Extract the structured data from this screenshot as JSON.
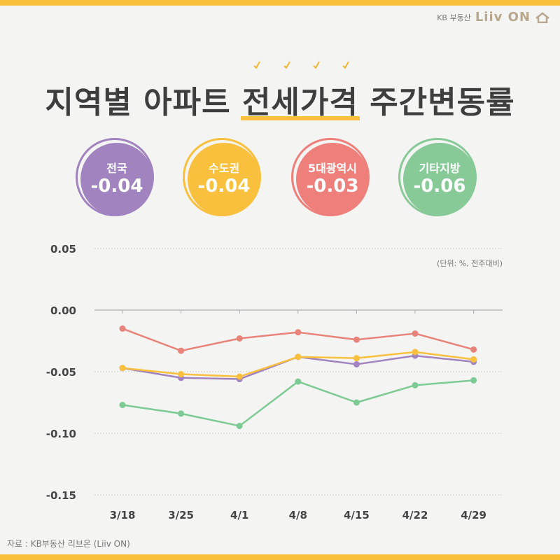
{
  "brand": {
    "company": "KB 부동산",
    "logo": "Liiv ON"
  },
  "title": {
    "prefix": "지역별 아파트",
    "highlight": "전세가격",
    "suffix": "주간변동률"
  },
  "badges": [
    {
      "label": "전국",
      "value": "-0.04",
      "color": "#a184bf"
    },
    {
      "label": "수도권",
      "value": "-0.04",
      "color": "#f8c03c"
    },
    {
      "label": "5대광역시",
      "value": "-0.03",
      "color": "#ee7f7b"
    },
    {
      "label": "기타지방",
      "value": "-0.06",
      "color": "#87ca98"
    }
  ],
  "chart_data": {
    "type": "line",
    "categories": [
      "3/18",
      "3/25",
      "4/1",
      "4/8",
      "4/15",
      "4/22",
      "4/29"
    ],
    "ylim": [
      -0.15,
      0.05
    ],
    "yticks": [
      0.05,
      0.0,
      -0.05,
      -0.1,
      -0.15
    ],
    "ytick_labels": [
      "0.05",
      "0.00",
      "-0.05",
      "-0.10",
      "-0.15"
    ],
    "unit_note": "(단위: %, 전주대비)",
    "grid": true,
    "series": [
      {
        "key": "metro",
        "color": "#e8837a",
        "values": [
          -0.015,
          -0.033,
          -0.023,
          -0.018,
          -0.024,
          -0.019,
          -0.032
        ]
      },
      {
        "key": "nation",
        "color": "#a184bf",
        "values": [
          -0.047,
          -0.055,
          -0.056,
          -0.038,
          -0.044,
          -0.037,
          -0.042
        ]
      },
      {
        "key": "capital",
        "color": "#f8c03c",
        "values": [
          -0.047,
          -0.052,
          -0.054,
          -0.038,
          -0.039,
          -0.034,
          -0.04
        ]
      },
      {
        "key": "other",
        "color": "#7dca95",
        "values": [
          -0.077,
          -0.084,
          -0.094,
          -0.058,
          -0.075,
          -0.061,
          -0.057
        ]
      }
    ]
  },
  "source": "자료 : KB부동산 리브온 (Liiv ON)"
}
